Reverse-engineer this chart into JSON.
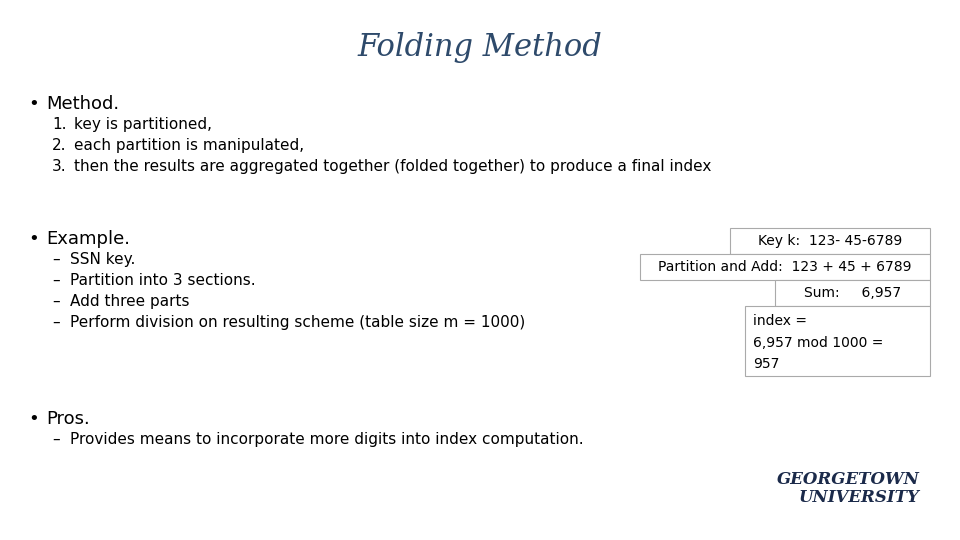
{
  "title": "Folding Method",
  "title_color": "#2E4A6B",
  "bg_color": "#ffffff",
  "text_color": "#000000",
  "bullet1_header": "Method.",
  "bullet1_items": [
    "key is partitioned,",
    "each partition is manipulated,",
    "then the results are aggregated together (folded together) to produce a final index"
  ],
  "bullet2_header": "Example.",
  "bullet2_items": [
    "SSN key.",
    "Partition into 3 sections.",
    "Add three parts",
    "Perform division on resulting scheme (table size m = 1000)"
  ],
  "bullet3_header": "Pros.",
  "bullet3_items": [
    "Provides means to incorporate more digits into index computation."
  ],
  "box1_text": "Key k:  123- 45-6789",
  "box2_text": "Partition and Add:  123 + 45 + 6789",
  "box3_text": "Sum:     6,957",
  "box4_text": "index =\n6,957 mod 1000 =\n957",
  "box_edge_color": "#aaaaaa",
  "box_face_color": "#ffffff",
  "georgetown_color": "#1B2A4A"
}
